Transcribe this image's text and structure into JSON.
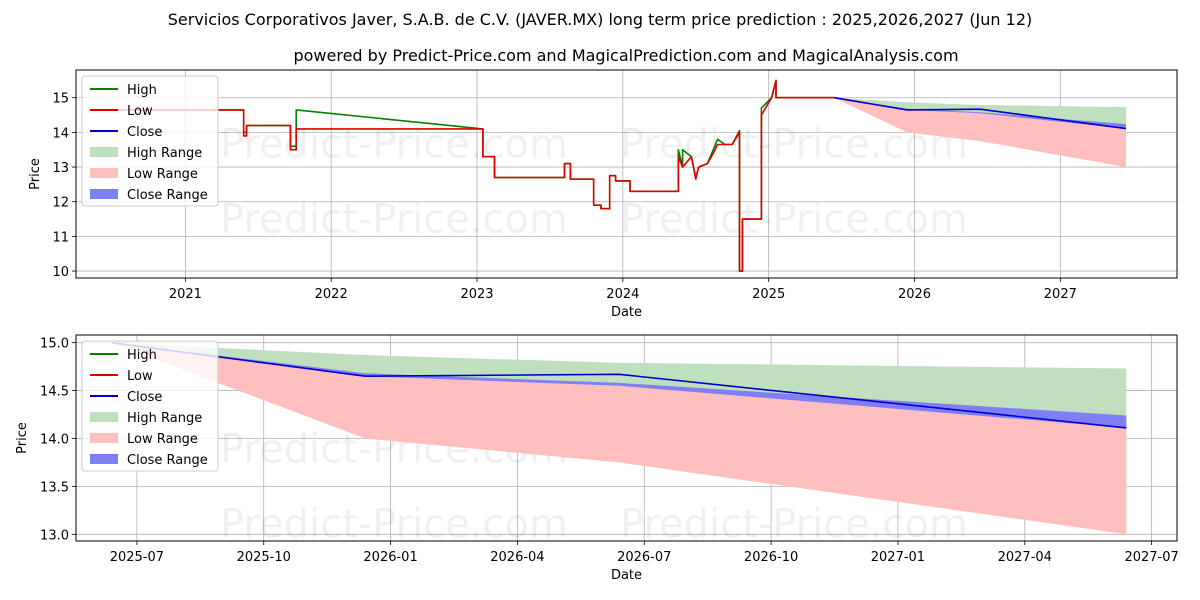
{
  "title": "Servicios Corporativos Javer, S.A.B. de C.V. (JAVER.MX) long term price prediction : 2025,2026,2027 (Jun 12)",
  "subtitle": "powered by Predict-Price.com and MagicalPrediction.com and MagicalAnalysis.com",
  "watermark": "Predict-Price.com",
  "colors": {
    "high": "#008000",
    "low": "#e00000",
    "close": "#0000cc",
    "high_range": "#bfe0bf",
    "low_range": "#ffbfbf",
    "close_range": "#7f7ff5",
    "grid": "#b0b0b0"
  },
  "legend": [
    "High",
    "Low",
    "Close",
    "High Range",
    "Low Range",
    "Close Range"
  ],
  "chart_data": [
    {
      "type": "line",
      "xlabel": "Date",
      "ylabel": "Price",
      "xlim": [
        2020.25,
        2027.8
      ],
      "ylim": [
        9.8,
        15.8
      ],
      "xticks": [
        2021,
        2022,
        2023,
        2024,
        2025,
        2026,
        2027
      ],
      "xtick_labels": [
        "2021",
        "2022",
        "2023",
        "2024",
        "2025",
        "2026",
        "2027"
      ],
      "yticks": [
        10,
        11,
        12,
        13,
        14,
        15
      ],
      "ytick_labels": [
        "10",
        "11",
        "12",
        "13",
        "14",
        "15"
      ],
      "history": {
        "x": [
          2020.45,
          2021.4,
          2021.4,
          2021.42,
          2021.42,
          2021.72,
          2021.72,
          2021.76,
          2021.76,
          2023.04,
          2023.04,
          2023.12,
          2023.12,
          2023.6,
          2023.6,
          2023.64,
          2023.64,
          2023.8,
          2023.8,
          2023.85,
          2023.85,
          2023.91,
          2023.91,
          2023.95,
          2023.95,
          2024.05,
          2024.05,
          2024.08,
          2024.08,
          2024.38,
          2024.38,
          2024.41,
          2024.41,
          2024.47,
          2024.47,
          2024.5,
          2024.52,
          2024.55,
          2024.58,
          2024.62,
          2024.65,
          2024.7,
          2024.75,
          2024.8,
          2024.8,
          2024.82,
          2024.82,
          2024.87,
          2024.87,
          2024.95,
          2024.95,
          2025.02,
          2025.02,
          2025.05,
          2025.05,
          2025.45
        ],
        "low": [
          14.65,
          14.65,
          13.9,
          13.9,
          14.2,
          14.2,
          13.5,
          13.5,
          14.1,
          14.1,
          13.3,
          13.3,
          12.7,
          12.7,
          13.1,
          13.1,
          12.65,
          12.65,
          11.9,
          11.9,
          11.8,
          11.8,
          12.75,
          12.75,
          12.6,
          12.6,
          12.3,
          12.3,
          12.3,
          12.3,
          13.3,
          13.0,
          13.0,
          13.3,
          13.3,
          12.65,
          13.0,
          13.05,
          13.1,
          13.4,
          13.65,
          13.65,
          13.65,
          14.0,
          10.0,
          10.0,
          11.5,
          11.5,
          11.5,
          11.5,
          14.5,
          15.0,
          15.0,
          15.5,
          15.0,
          15.0
        ],
        "high": [
          14.65,
          14.65,
          14.0,
          14.0,
          14.2,
          14.2,
          13.6,
          13.6,
          14.65,
          14.1,
          13.3,
          13.3,
          12.7,
          12.7,
          13.1,
          13.1,
          12.65,
          12.65,
          11.9,
          11.9,
          11.8,
          11.8,
          12.75,
          12.75,
          12.6,
          12.6,
          12.3,
          12.3,
          12.3,
          12.3,
          13.5,
          13.0,
          13.5,
          13.3,
          13.3,
          12.7,
          13.0,
          13.05,
          13.1,
          13.5,
          13.8,
          13.65,
          13.65,
          14.05,
          10.0,
          10.0,
          11.5,
          11.5,
          11.5,
          11.5,
          14.7,
          15.0,
          15.0,
          15.5,
          15.0,
          15.0
        ]
      },
      "forecast": {
        "x": [
          2025.45,
          2025.95,
          2026.45,
          2027.45
        ],
        "close": [
          15.0,
          14.65,
          14.67,
          14.11
        ],
        "high_upper": [
          15.0,
          14.87,
          14.79,
          14.73
        ],
        "low_lower": [
          15.0,
          14.0,
          13.75,
          13.0
        ],
        "close_upper": [
          15.0,
          14.68,
          14.58,
          14.24
        ],
        "close_lower": [
          15.0,
          14.65,
          14.55,
          14.11
        ]
      }
    },
    {
      "type": "line",
      "xlabel": "Date",
      "ylabel": "Price",
      "xlim": [
        2025.38,
        2027.55
      ],
      "ylim": [
        12.93,
        15.08
      ],
      "xticks": [
        2025.5,
        2025.75,
        2026.0,
        2026.25,
        2026.5,
        2026.75,
        2027.0,
        2027.25,
        2027.5
      ],
      "xtick_labels": [
        "2025-07",
        "2025-10",
        "2026-01",
        "2026-04",
        "2026-07",
        "2026-10",
        "2027-01",
        "2027-04",
        "2027-07"
      ],
      "yticks": [
        13.0,
        13.5,
        14.0,
        14.5,
        15.0
      ],
      "ytick_labels": [
        "13.0",
        "13.5",
        "14.0",
        "14.5",
        "15.0"
      ],
      "forecast": {
        "x": [
          2025.45,
          2025.95,
          2026.45,
          2027.45
        ],
        "close": [
          15.0,
          14.65,
          14.67,
          14.11
        ],
        "high_upper": [
          15.0,
          14.87,
          14.79,
          14.73
        ],
        "low_lower": [
          15.0,
          14.0,
          13.75,
          13.0
        ],
        "close_upper": [
          15.0,
          14.68,
          14.58,
          14.24
        ],
        "close_lower": [
          15.0,
          14.65,
          14.55,
          14.11
        ]
      }
    }
  ]
}
